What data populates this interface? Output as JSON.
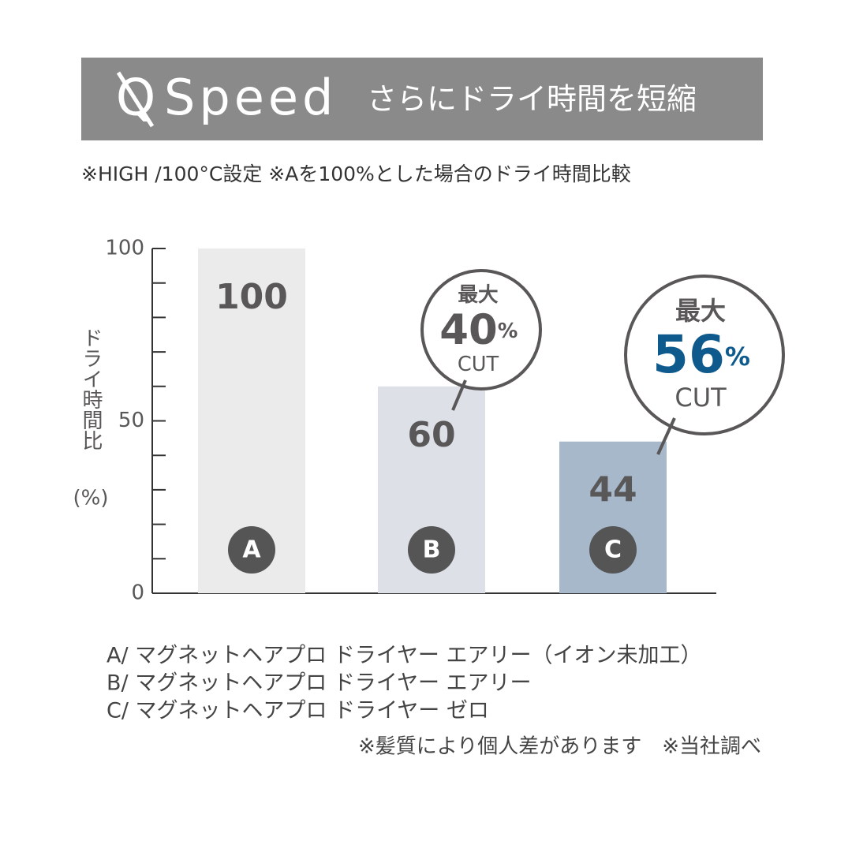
{
  "header": {
    "logo": "Q",
    "brand": "Speed",
    "tagline": "さらにドライ時間を短縮"
  },
  "chart_data": {
    "type": "bar",
    "subtitle": "※HIGH /100°C設定 ※Aを100%とした場合のドライ時間比較",
    "y_label": "ドライ時間比",
    "y_unit": "(%)",
    "categories": [
      "A",
      "B",
      "C"
    ],
    "values": [
      100,
      60,
      44
    ],
    "colors": [
      "#ebebeb",
      "#dde0e7",
      "#a7b8cb"
    ],
    "ylim": [
      0,
      100
    ],
    "yticks": [
      0,
      50,
      100
    ],
    "minor_yticks": [
      10,
      20,
      30,
      40,
      60,
      70,
      80,
      90
    ],
    "annotations": [
      {
        "top": "最大",
        "value": 40,
        "unit": "%",
        "bottom": "CUT",
        "color": "#595757"
      },
      {
        "top": "最大",
        "value": 56,
        "unit": "%",
        "bottom": "CUT",
        "color": "#0f5a8c"
      }
    ],
    "descriptions": [
      "A/ マグネットヘアプロ ドライヤー エアリー（イオン未加工）",
      "B/ マグネットヘアプロ ドライヤー エアリー",
      "C/ マグネットヘアプロ ドライヤー ゼロ"
    ],
    "footnote": "※髪質により個人差があります　※当社調べ"
  }
}
